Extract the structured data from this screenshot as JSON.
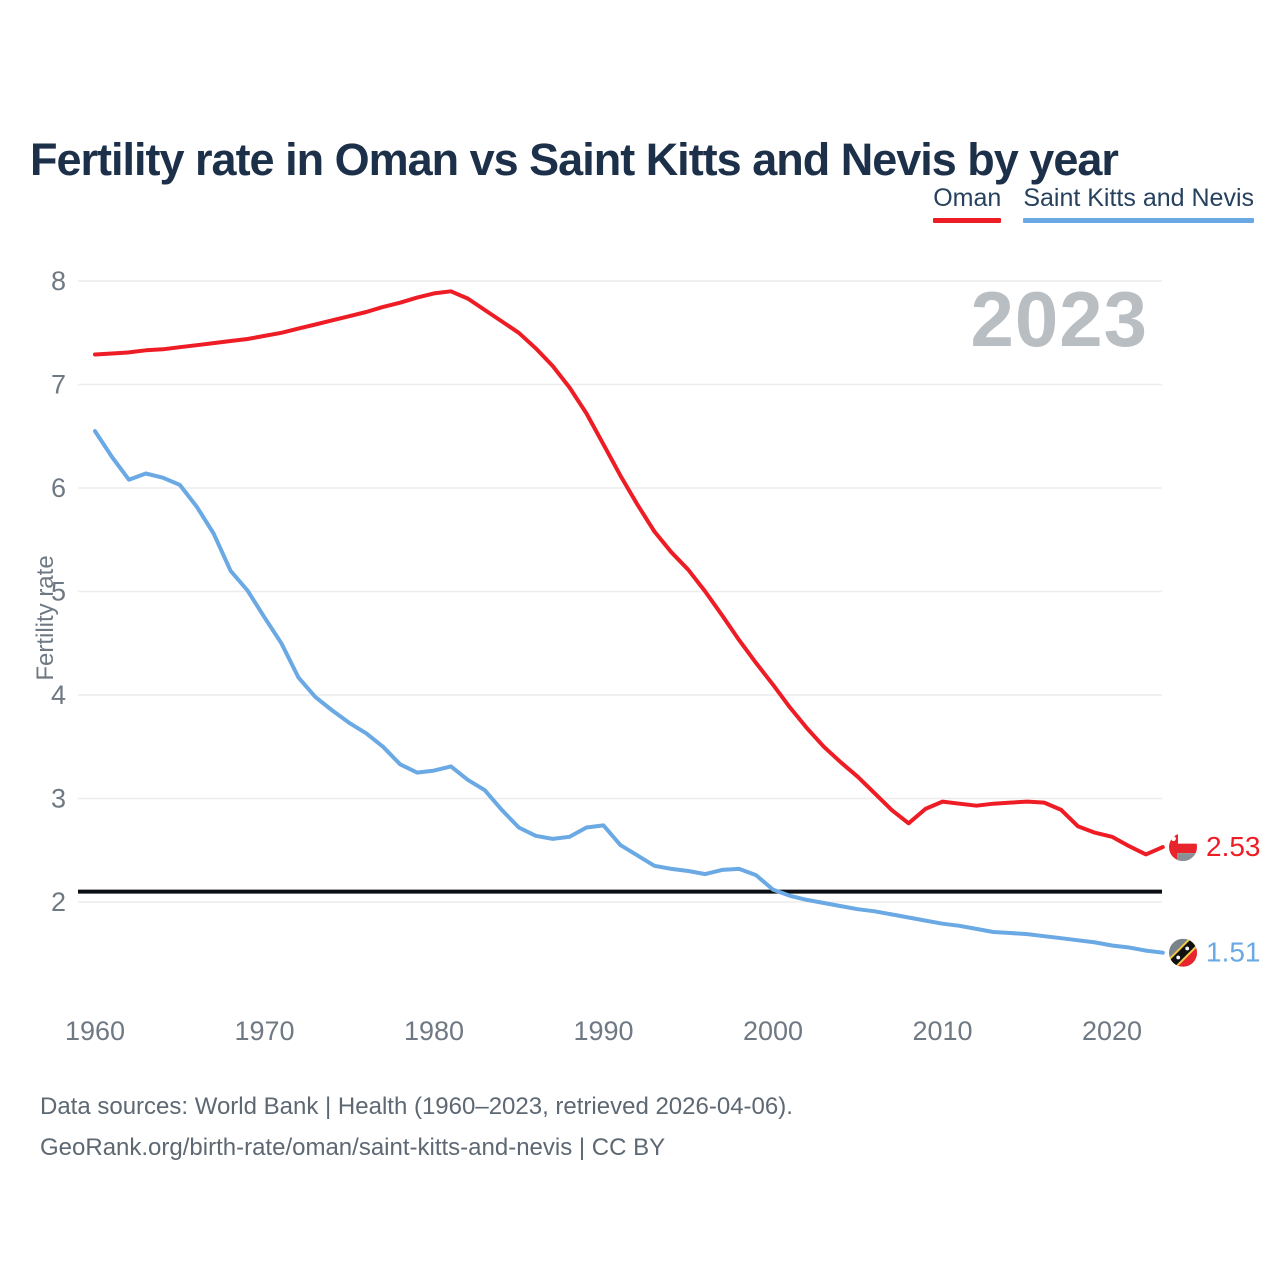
{
  "title": "Fertility rate in Oman vs Saint Kitts and Nevis by year",
  "watermark": "2023",
  "legend": [
    {
      "label": "Oman",
      "color": "#ee1c25"
    },
    {
      "label": "Saint Kitts and Nevis",
      "color": "#6aa9e3"
    }
  ],
  "footer": {
    "line1": "Data sources: World Bank | Health (1960–2023, retrieved 2026-04-06).",
    "line2": "GeoRank.org/birth-rate/oman/saint-kitts-and-nevis | CC BY"
  },
  "chart_data": {
    "type": "line",
    "title": "Fertility rate in Oman vs Saint Kitts and Nevis by year",
    "xlabel": "",
    "ylabel": "Fertility rate",
    "x_ticks": [
      1960,
      1970,
      1980,
      1990,
      2000,
      2010,
      2020
    ],
    "y_ticks": [
      2,
      3,
      4,
      5,
      6,
      7,
      8
    ],
    "ylim": [
      1.2,
      8.15
    ],
    "grid": true,
    "legend_position": "top-right",
    "reference_line": {
      "value": 2.1,
      "color": "#0b0e12"
    },
    "years": [
      1960,
      1961,
      1962,
      1963,
      1964,
      1965,
      1966,
      1967,
      1968,
      1969,
      1970,
      1971,
      1972,
      1973,
      1974,
      1975,
      1976,
      1977,
      1978,
      1979,
      1980,
      1981,
      1982,
      1983,
      1984,
      1985,
      1986,
      1987,
      1988,
      1989,
      1990,
      1991,
      1992,
      1993,
      1994,
      1995,
      1996,
      1997,
      1998,
      1999,
      2000,
      2001,
      2002,
      2003,
      2004,
      2005,
      2006,
      2007,
      2008,
      2009,
      2010,
      2011,
      2012,
      2013,
      2014,
      2015,
      2016,
      2017,
      2018,
      2019,
      2020,
      2021,
      2022,
      2023
    ],
    "series": [
      {
        "name": "Oman",
        "color": "#ee1c25",
        "end_label": "2.53",
        "flag": "oman",
        "values": [
          7.29,
          7.3,
          7.31,
          7.33,
          7.34,
          7.36,
          7.38,
          7.4,
          7.42,
          7.44,
          7.47,
          7.5,
          7.54,
          7.58,
          7.62,
          7.66,
          7.7,
          7.75,
          7.79,
          7.84,
          7.88,
          7.9,
          7.83,
          7.72,
          7.61,
          7.5,
          7.35,
          7.18,
          6.97,
          6.72,
          6.42,
          6.12,
          5.84,
          5.58,
          5.38,
          5.21,
          5.0,
          4.77,
          4.53,
          4.31,
          4.1,
          3.88,
          3.68,
          3.5,
          3.35,
          3.21,
          3.05,
          2.89,
          2.76,
          2.9,
          2.97,
          2.95,
          2.93,
          2.95,
          2.96,
          2.97,
          2.96,
          2.89,
          2.73,
          2.67,
          2.63,
          2.54,
          2.46,
          2.53
        ]
      },
      {
        "name": "Saint Kitts and Nevis",
        "color": "#6aa9e3",
        "end_label": "1.51",
        "flag": "saint-kitts-and-nevis",
        "values": [
          6.55,
          6.3,
          6.08,
          6.14,
          6.1,
          6.03,
          5.82,
          5.56,
          5.2,
          5.01,
          4.75,
          4.5,
          4.17,
          3.98,
          3.85,
          3.73,
          3.63,
          3.5,
          3.33,
          3.25,
          3.27,
          3.31,
          3.18,
          3.08,
          2.89,
          2.72,
          2.64,
          2.61,
          2.63,
          2.72,
          2.74,
          2.55,
          2.45,
          2.35,
          2.32,
          2.3,
          2.27,
          2.31,
          2.32,
          2.26,
          2.12,
          2.06,
          2.02,
          1.99,
          1.96,
          1.93,
          1.91,
          1.88,
          1.85,
          1.82,
          1.79,
          1.77,
          1.74,
          1.71,
          1.7,
          1.69,
          1.67,
          1.65,
          1.63,
          1.61,
          1.58,
          1.56,
          1.53,
          1.51
        ]
      }
    ]
  }
}
